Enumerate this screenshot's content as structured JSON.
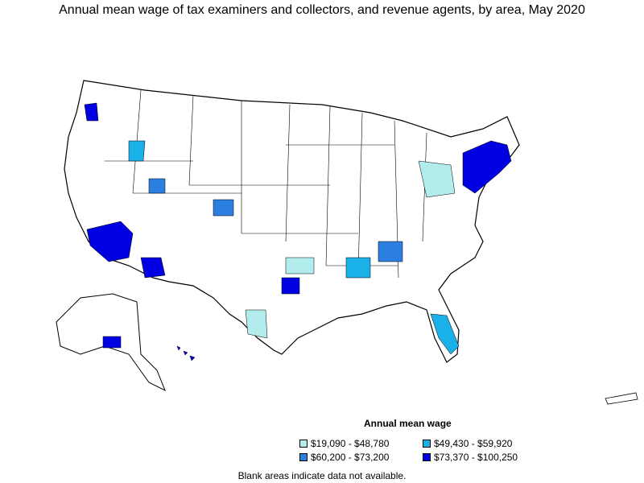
{
  "title": "Annual mean wage of tax examiners and collectors, and revenue agents, by area, May 2020",
  "legend": {
    "title": "Annual mean wage",
    "items": [
      {
        "label": "$19,090 - $48,780",
        "color": "#b2ecec"
      },
      {
        "label": "$49,430 - $59,920",
        "color": "#1ab0e8"
      },
      {
        "label": "$60,200 - $73,200",
        "color": "#2a7fe0"
      },
      {
        "label": "$73,370 - $100,250",
        "color": "#0000e0"
      }
    ]
  },
  "note": "Blank areas indicate data not available."
}
